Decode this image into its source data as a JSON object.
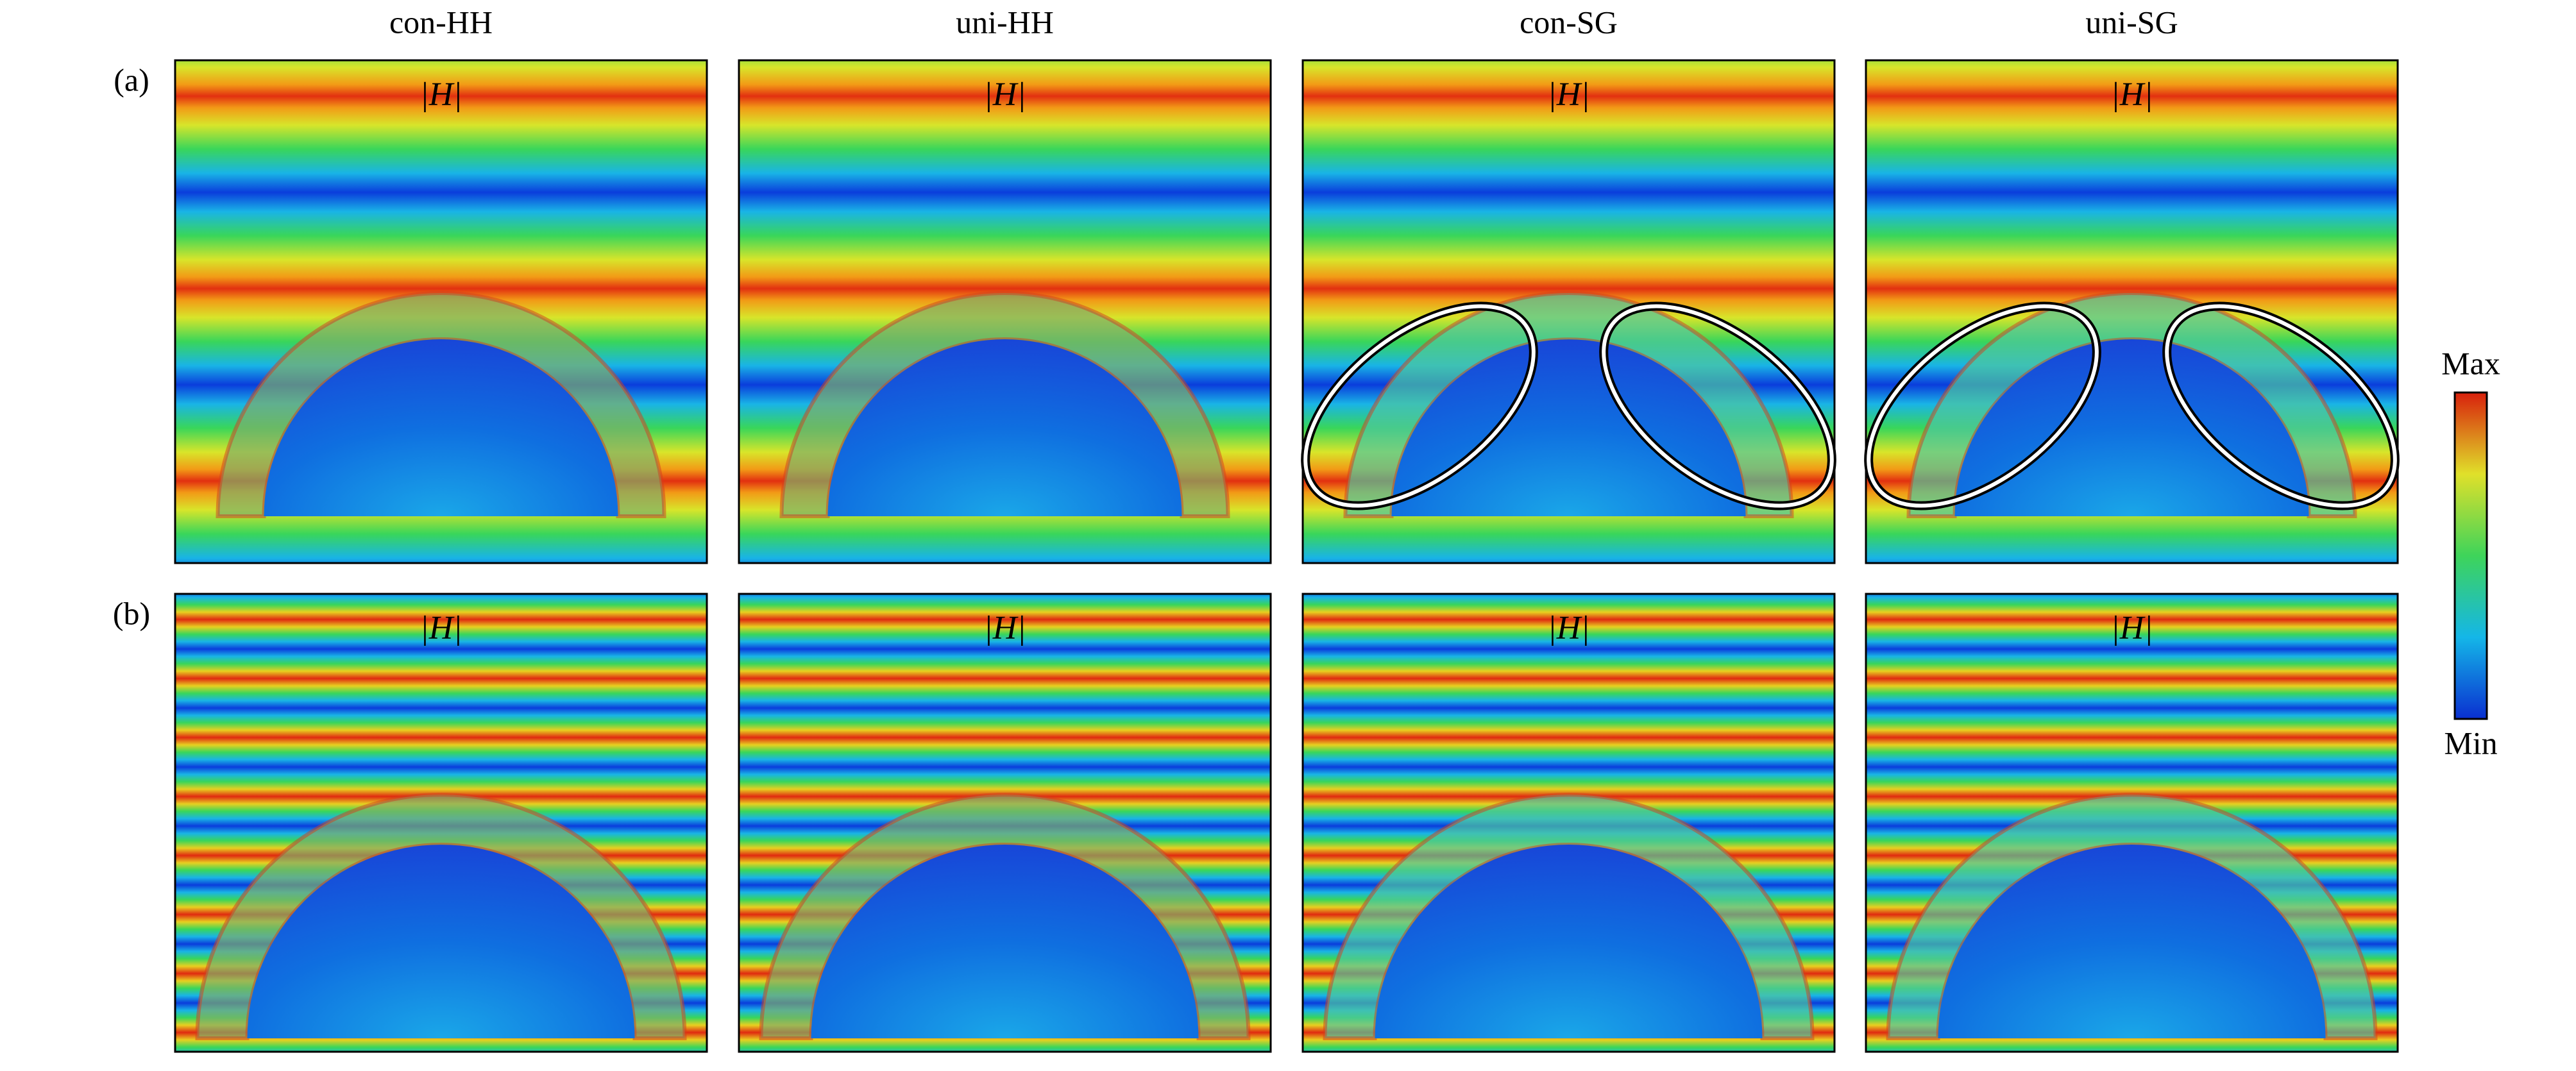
{
  "columns": [
    "con-HH",
    "uni-HH",
    "con-SG",
    "uni-SG"
  ],
  "rows": [
    "(a)",
    "(b)"
  ],
  "panels": [
    [
      "|H|",
      "|H|",
      "|H|",
      "|H|"
    ],
    [
      "|H|",
      "|H|",
      "|H|",
      "|H|"
    ]
  ],
  "colorbar": {
    "max": "Max",
    "min": "Min"
  }
}
